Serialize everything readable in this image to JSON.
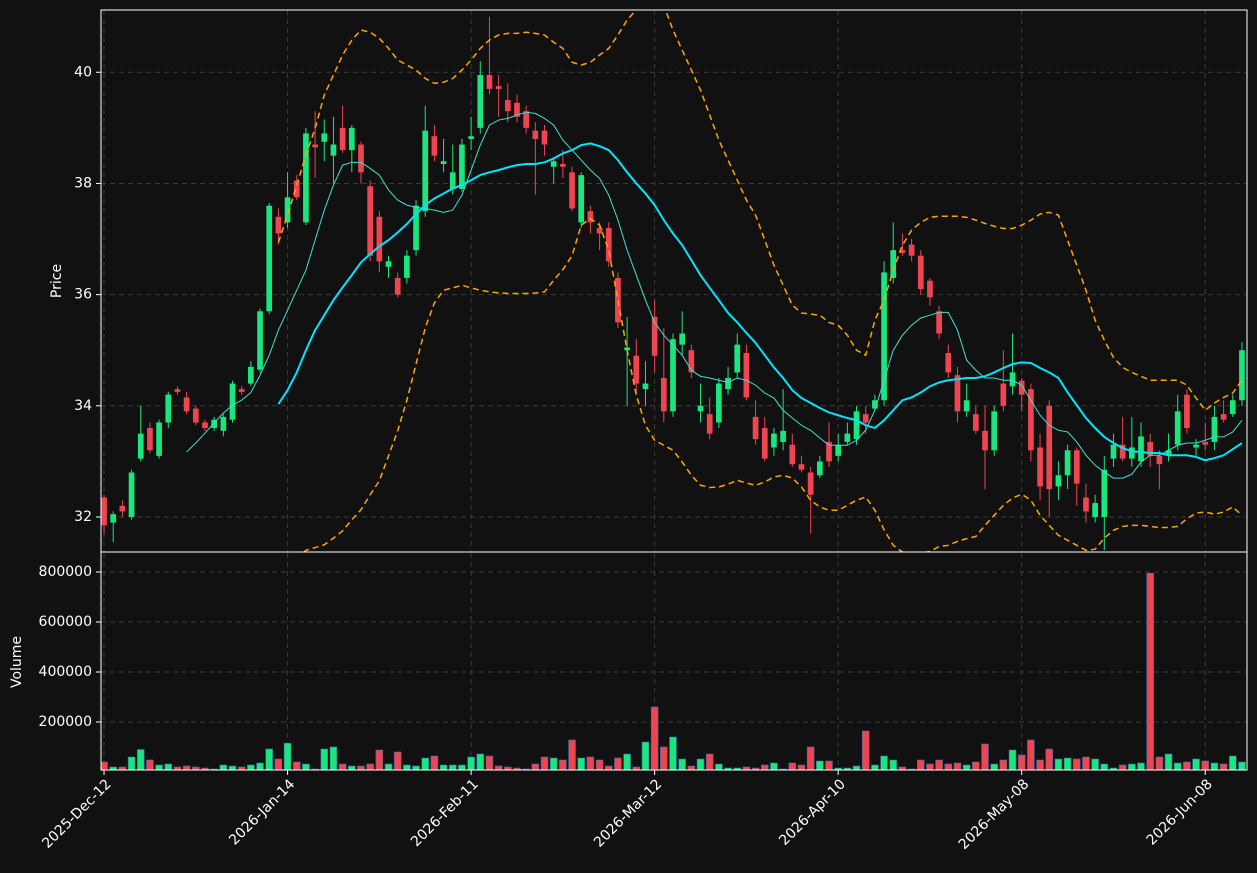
{
  "chart_data": {
    "type": "candlestick",
    "ylabel": "Price",
    "volume_label": "Volume",
    "grid": true,
    "up_color": "#19e67f",
    "down_color": "#ef4451",
    "volume_edge_color": "#3a6ea5",
    "ylim": [
      31.37,
      41.12
    ],
    "yticks": [
      32,
      34,
      36,
      38,
      40
    ],
    "volume_ylim": [
      8000,
      876000
    ],
    "volume_yticks": [
      200000,
      400000,
      600000,
      800000
    ],
    "categories": [
      "2025-Dec-12",
      null,
      null,
      null,
      null,
      null,
      null,
      null,
      null,
      null,
      null,
      null,
      null,
      null,
      null,
      null,
      null,
      null,
      null,
      null,
      "2026-Jan-14",
      null,
      null,
      null,
      null,
      null,
      null,
      null,
      null,
      null,
      null,
      null,
      null,
      null,
      null,
      null,
      null,
      null,
      null,
      null,
      "2026-Feb-11",
      null,
      null,
      null,
      null,
      null,
      null,
      null,
      null,
      null,
      null,
      null,
      null,
      null,
      null,
      null,
      null,
      null,
      null,
      null,
      "2026-Mar-12",
      null,
      null,
      null,
      null,
      null,
      null,
      null,
      null,
      null,
      null,
      null,
      null,
      null,
      null,
      null,
      null,
      null,
      null,
      null,
      "2026-Apr-10",
      null,
      null,
      null,
      null,
      null,
      null,
      null,
      null,
      null,
      null,
      null,
      null,
      null,
      null,
      null,
      null,
      null,
      null,
      null,
      "2026-May-08",
      null,
      null,
      null,
      null,
      null,
      null,
      null,
      null,
      null,
      null,
      null,
      null,
      null,
      null,
      null,
      null,
      null,
      null,
      null,
      "2026-Jun-08",
      null,
      null,
      null,
      null
    ],
    "open": [
      32.35,
      31.9,
      32.2,
      32.0,
      33.05,
      33.6,
      33.1,
      33.7,
      34.3,
      34.15,
      33.95,
      33.7,
      33.6,
      33.55,
      33.75,
      34.3,
      34.4,
      34.65,
      35.7,
      37.4,
      37.3,
      38.05,
      37.3,
      38.7,
      38.75,
      38.5,
      39.0,
      38.6,
      38.7,
      37.95,
      37.4,
      36.5,
      36.3,
      36.3,
      36.8,
      37.5,
      38.85,
      38.35,
      37.9,
      37.9,
      38.8,
      39.0,
      39.95,
      39.75,
      39.5,
      39.45,
      39.3,
      38.95,
      38.95,
      38.3,
      38.35,
      38.2,
      37.3,
      37.5,
      37.2,
      37.2,
      36.3,
      35.0,
      34.9,
      34.3,
      35.6,
      34.5,
      33.9,
      35.1,
      35.0,
      33.9,
      33.85,
      33.7,
      34.3,
      34.6,
      34.95,
      33.8,
      33.6,
      33.25,
      33.35,
      33.3,
      32.95,
      32.8,
      32.75,
      33.35,
      33.1,
      33.35,
      33.4,
      33.85,
      33.95,
      34.1,
      36.3,
      36.8,
      36.9,
      36.7,
      36.25,
      35.7,
      34.95,
      34.55,
      33.9,
      33.85,
      33.55,
      33.2,
      34.4,
      34.35,
      34.45,
      34.3,
      33.25,
      34.0,
      32.55,
      32.75,
      33.2,
      32.35,
      32.0,
      32.0,
      33.05,
      33.3,
      33.05,
      33.0,
      33.35,
      33.1,
      33.1,
      33.3,
      34.2,
      33.25,
      33.35,
      33.35,
      33.85,
      33.85,
      34.1
    ],
    "high": [
      32.4,
      32.1,
      32.3,
      32.85,
      34.0,
      33.7,
      33.75,
      34.25,
      34.35,
      34.25,
      34.0,
      33.75,
      33.8,
      33.85,
      34.45,
      34.35,
      34.8,
      35.75,
      37.65,
      37.55,
      38.2,
      38.15,
      39.0,
      39.3,
      39.15,
      39.2,
      39.4,
      39.05,
      38.75,
      38.05,
      37.5,
      36.7,
      36.4,
      36.8,
      37.7,
      39.4,
      39.05,
      38.8,
      38.7,
      38.8,
      39.2,
      40.2,
      41.0,
      39.95,
      39.8,
      39.6,
      39.4,
      39.1,
      39.05,
      38.45,
      38.6,
      38.3,
      38.2,
      37.6,
      37.3,
      37.3,
      36.4,
      35.6,
      35.2,
      34.8,
      35.9,
      35.4,
      35.3,
      35.7,
      35.1,
      34.4,
      34.15,
      34.5,
      34.7,
      35.3,
      35.1,
      34.1,
      33.8,
      33.6,
      34.3,
      33.5,
      33.1,
      32.9,
      33.1,
      33.7,
      33.5,
      33.7,
      34.0,
      34.0,
      34.2,
      36.6,
      37.3,
      37.1,
      37.0,
      36.8,
      36.3,
      35.8,
      35.1,
      34.7,
      34.4,
      34.0,
      34.0,
      34.0,
      35.0,
      35.3,
      34.5,
      34.4,
      33.5,
      34.1,
      33.0,
      33.3,
      33.25,
      32.6,
      32.4,
      33.1,
      33.5,
      33.8,
      33.8,
      33.7,
      33.5,
      33.2,
      33.5,
      34.2,
      34.3,
      33.4,
      33.7,
      34.0,
      34.1,
      34.2,
      35.15
    ],
    "low": [
      31.7,
      31.55,
      32.0,
      31.95,
      33.0,
      33.15,
      33.05,
      33.6,
      34.2,
      33.85,
      33.65,
      33.55,
      33.55,
      33.45,
      33.7,
      34.2,
      34.35,
      34.6,
      35.65,
      36.9,
      37.2,
      37.7,
      37.25,
      38.1,
      38.4,
      38.0,
      38.55,
      38.2,
      38.0,
      36.6,
      36.4,
      36.3,
      35.95,
      36.2,
      36.7,
      37.4,
      38.4,
      38.2,
      37.8,
      37.85,
      38.6,
      38.9,
      39.6,
      39.2,
      39.1,
      39.1,
      38.9,
      37.8,
      38.5,
      38.0,
      38.1,
      37.5,
      37.2,
      37.1,
      36.8,
      36.5,
      35.4,
      34.0,
      34.2,
      34.0,
      34.6,
      33.7,
      33.8,
      34.9,
      34.5,
      33.7,
      33.4,
      33.6,
      34.2,
      34.5,
      34.1,
      33.3,
      33.0,
      33.1,
      33.2,
      32.9,
      32.8,
      31.7,
      32.7,
      32.9,
      33.0,
      33.3,
      33.3,
      33.5,
      33.9,
      34.0,
      36.2,
      36.7,
      36.6,
      36.0,
      35.8,
      35.2,
      34.5,
      33.7,
      33.8,
      33.5,
      32.5,
      33.1,
      33.9,
      34.2,
      33.9,
      33.0,
      32.3,
      32.0,
      32.3,
      32.5,
      32.2,
      31.9,
      31.9,
      31.4,
      32.9,
      33.0,
      32.9,
      32.9,
      32.9,
      32.5,
      33.0,
      33.2,
      33.5,
      33.1,
      33.2,
      33.2,
      33.7,
      33.8,
      34.0
    ],
    "close": [
      31.85,
      32.05,
      32.1,
      32.8,
      33.5,
      33.2,
      33.7,
      34.2,
      34.25,
      33.9,
      33.7,
      33.6,
      33.75,
      33.8,
      34.4,
      34.25,
      34.7,
      35.7,
      37.6,
      37.1,
      37.75,
      37.75,
      38.9,
      38.65,
      38.9,
      38.7,
      38.6,
      39.0,
      38.2,
      36.7,
      36.6,
      36.6,
      36.0,
      36.7,
      37.6,
      38.95,
      38.5,
      38.4,
      38.2,
      38.7,
      38.85,
      39.95,
      39.7,
      39.7,
      39.3,
      39.2,
      39.0,
      38.8,
      38.7,
      38.4,
      38.3,
      37.55,
      38.15,
      37.3,
      37.1,
      36.6,
      35.5,
      35.05,
      34.4,
      34.4,
      34.9,
      33.9,
      35.2,
      35.3,
      34.6,
      34.0,
      33.5,
      34.4,
      34.5,
      35.1,
      34.15,
      33.4,
      33.05,
      33.5,
      33.55,
      32.95,
      32.85,
      32.4,
      33.0,
      33.0,
      33.3,
      33.5,
      33.9,
      33.7,
      34.1,
      36.4,
      36.8,
      36.75,
      36.7,
      36.1,
      35.95,
      35.3,
      34.6,
      33.9,
      34.1,
      33.55,
      33.2,
      33.9,
      34.0,
      34.6,
      34.2,
      33.2,
      32.55,
      32.5,
      32.75,
      33.2,
      32.6,
      32.1,
      32.25,
      32.85,
      33.3,
      33.05,
      33.25,
      33.45,
      33.1,
      32.95,
      33.2,
      33.9,
      33.6,
      33.3,
      33.3,
      33.8,
      33.75,
      34.1,
      35.0
    ],
    "volume": [
      40000,
      20000,
      20000,
      60000,
      90000,
      48000,
      28000,
      32000,
      20000,
      24000,
      20000,
      16000,
      12000,
      28000,
      24000,
      20000,
      28000,
      36000,
      92000,
      52000,
      115000,
      40000,
      32000,
      12000,
      92000,
      100000,
      32000,
      24000,
      24000,
      32000,
      88000,
      32000,
      80000,
      28000,
      24000,
      56000,
      64000,
      28000,
      28000,
      28000,
      60000,
      72000,
      64000,
      24000,
      20000,
      16000,
      12000,
      32000,
      60000,
      56000,
      48000,
      128000,
      56000,
      60000,
      48000,
      24000,
      56000,
      72000,
      20000,
      120000,
      260000,
      100000,
      140000,
      52000,
      24000,
      52000,
      72000,
      32000,
      16000,
      16000,
      20000,
      16000,
      28000,
      36000,
      12000,
      36000,
      28000,
      100000,
      44000,
      44000,
      16000,
      16000,
      24000,
      164000,
      28000,
      64000,
      48000,
      20000,
      12000,
      48000,
      32000,
      48000,
      32000,
      36000,
      28000,
      40000,
      112000,
      32000,
      48000,
      88000,
      68000,
      128000,
      48000,
      92000,
      52000,
      56000,
      52000,
      60000,
      52000,
      32000,
      16000,
      28000,
      32000,
      36000,
      795000,
      60000,
      72000,
      36000,
      40000,
      52000,
      44000,
      36000,
      32000,
      64000,
      40000
    ],
    "series": [
      {
        "color": "#40e0d0",
        "width": 1,
        "linestyle": "solid",
        "values": [
          null,
          null,
          null,
          null,
          null,
          null,
          null,
          null,
          null,
          33.17,
          33.33,
          33.51,
          33.69,
          33.87,
          34.01,
          34.1,
          34.24,
          34.55,
          34.91,
          35.36,
          35.72,
          36.08,
          36.44,
          36.98,
          37.52,
          37.97,
          38.33,
          38.38,
          38.38,
          38.27,
          38.15,
          37.88,
          37.7,
          37.61,
          37.57,
          37.55,
          37.52,
          37.48,
          37.52,
          37.79,
          38.24,
          38.69,
          39.05,
          39.14,
          39.17,
          39.23,
          39.28,
          39.26,
          39.17,
          39.05,
          38.78,
          38.6,
          38.42,
          38.24,
          38.09,
          37.79,
          37.34,
          36.8,
          36.35,
          35.9,
          35.5,
          35.27,
          35.09,
          34.91,
          34.64,
          34.53,
          34.5,
          34.46,
          34.42,
          34.5,
          34.46,
          34.37,
          34.23,
          34.14,
          33.92,
          33.78,
          33.65,
          33.56,
          33.42,
          33.29,
          33.29,
          33.29,
          33.38,
          33.56,
          33.92,
          34.46,
          35.0,
          35.27,
          35.45,
          35.58,
          35.63,
          35.68,
          35.68,
          35.36,
          34.82,
          34.64,
          34.5,
          34.5,
          34.46,
          34.46,
          34.37,
          34.1,
          33.83,
          33.65,
          33.56,
          33.53,
          33.35,
          33.11,
          32.93,
          32.81,
          32.7,
          32.7,
          32.77,
          32.99,
          33.11,
          33.11,
          33.2,
          33.29,
          33.33,
          33.33,
          33.38,
          33.44,
          33.44,
          33.53,
          33.74
        ]
      },
      {
        "color": "#00e5ff",
        "width": 2,
        "linestyle": "solid",
        "values": [
          null,
          null,
          null,
          null,
          null,
          null,
          null,
          null,
          null,
          null,
          null,
          null,
          null,
          null,
          null,
          null,
          null,
          null,
          null,
          34.03,
          34.28,
          34.6,
          35.0,
          35.36,
          35.63,
          35.9,
          36.13,
          36.35,
          36.58,
          36.73,
          36.87,
          36.98,
          37.12,
          37.27,
          37.45,
          37.61,
          37.73,
          37.82,
          37.91,
          37.97,
          38.06,
          38.15,
          38.2,
          38.24,
          38.29,
          38.33,
          38.35,
          38.35,
          38.38,
          38.45,
          38.54,
          38.6,
          38.69,
          38.72,
          38.67,
          38.6,
          38.42,
          38.2,
          38.0,
          37.82,
          37.61,
          37.34,
          37.1,
          36.89,
          36.62,
          36.35,
          36.12,
          35.9,
          35.67,
          35.5,
          35.31,
          35.13,
          34.91,
          34.69,
          34.5,
          34.28,
          34.14,
          34.05,
          33.96,
          33.88,
          33.83,
          33.78,
          33.74,
          33.65,
          33.6,
          33.74,
          33.92,
          34.1,
          34.15,
          34.24,
          34.35,
          34.42,
          34.46,
          34.48,
          34.5,
          34.5,
          34.53,
          34.6,
          34.68,
          34.75,
          34.78,
          34.77,
          34.68,
          34.6,
          34.5,
          34.24,
          34.01,
          33.78,
          33.6,
          33.44,
          33.33,
          33.24,
          33.18,
          33.17,
          33.15,
          33.15,
          33.11,
          33.11,
          33.11,
          33.08,
          33.02,
          33.06,
          33.11,
          33.22,
          33.33
        ]
      },
      {
        "color": "#ffa500",
        "width": 1.5,
        "linestyle": "dashed",
        "values": [
          null,
          null,
          null,
          null,
          null,
          null,
          null,
          null,
          null,
          null,
          null,
          null,
          null,
          null,
          null,
          null,
          null,
          null,
          null,
          36.94,
          37.43,
          37.97,
          38.51,
          38.99,
          39.59,
          39.95,
          40.31,
          40.58,
          40.76,
          40.72,
          40.61,
          40.43,
          40.22,
          40.13,
          40.04,
          39.89,
          39.8,
          39.82,
          39.89,
          40.04,
          40.22,
          40.43,
          40.58,
          40.67,
          40.7,
          40.7,
          40.72,
          40.7,
          40.67,
          40.54,
          40.43,
          40.18,
          40.13,
          40.18,
          40.31,
          40.43,
          40.67,
          40.94,
          41.12,
          41.21,
          41.3,
          41.2,
          40.76,
          40.4,
          40.04,
          39.68,
          39.23,
          38.78,
          38.42,
          38.06,
          37.7,
          37.43,
          36.98,
          36.53,
          36.17,
          35.81,
          35.67,
          35.65,
          35.63,
          35.5,
          35.45,
          35.27,
          35.0,
          34.91,
          35.54,
          35.9,
          36.44,
          36.89,
          37.16,
          37.3,
          37.39,
          37.41,
          37.41,
          37.41,
          37.39,
          37.34,
          37.28,
          37.23,
          37.19,
          37.19,
          37.25,
          37.34,
          37.45,
          37.48,
          37.43,
          36.98,
          36.53,
          36.08,
          35.54,
          35.18,
          34.87,
          34.69,
          34.6,
          34.53,
          34.46,
          34.46,
          34.46,
          34.46,
          34.37,
          34.14,
          33.92,
          34.05,
          34.15,
          34.23,
          34.46
        ]
      },
      {
        "color": "#ffa500",
        "width": 1.5,
        "linestyle": "dashed",
        "values": [
          null,
          null,
          null,
          null,
          null,
          null,
          null,
          null,
          null,
          null,
          null,
          null,
          null,
          null,
          null,
          null,
          null,
          null,
          null,
          31.12,
          31.13,
          31.25,
          31.4,
          31.45,
          31.5,
          31.62,
          31.75,
          31.95,
          32.13,
          32.4,
          32.65,
          33.1,
          33.55,
          34.1,
          34.75,
          35.4,
          35.85,
          36.08,
          36.12,
          36.17,
          36.12,
          36.08,
          36.05,
          36.03,
          36.02,
          36.02,
          36.02,
          36.03,
          36.05,
          36.26,
          36.45,
          36.7,
          37.25,
          37.37,
          37.25,
          36.8,
          35.9,
          35.0,
          34.19,
          33.65,
          33.38,
          33.29,
          33.2,
          32.99,
          32.75,
          32.57,
          32.53,
          32.54,
          32.59,
          32.66,
          32.61,
          32.57,
          32.63,
          32.72,
          32.75,
          32.7,
          32.54,
          32.3,
          32.18,
          32.12,
          32.12,
          32.21,
          32.3,
          32.36,
          32.12,
          31.77,
          31.49,
          31.37,
          31.25,
          31.35,
          31.38,
          31.47,
          31.49,
          31.56,
          31.61,
          31.65,
          31.85,
          32.03,
          32.21,
          32.34,
          32.41,
          32.3,
          32.03,
          31.85,
          31.67,
          31.58,
          31.49,
          31.4,
          31.42,
          31.62,
          31.76,
          31.83,
          31.85,
          31.85,
          31.83,
          31.81,
          31.81,
          31.83,
          31.97,
          32.07,
          32.09,
          32.05,
          32.09,
          32.18,
          32.03
        ]
      }
    ]
  }
}
